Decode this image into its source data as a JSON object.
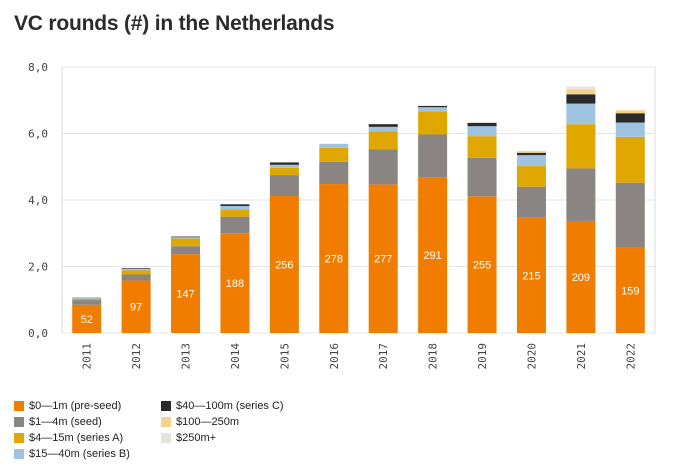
{
  "chart_data": {
    "type": "bar",
    "stacked": true,
    "title": "VC rounds (#) in the Netherlands",
    "xlabel": "",
    "ylabel": "",
    "ylim": [
      0,
      8
    ],
    "yticks": [
      "0,0",
      "2,0",
      "4,0",
      "6,0",
      "8,0"
    ],
    "categories": [
      "2011",
      "2012",
      "2013",
      "2014",
      "2015",
      "2016",
      "2017",
      "2018",
      "2019",
      "2020",
      "2021",
      "2022"
    ],
    "grid": true,
    "legend_position": "bottom-left",
    "series": [
      {
        "name": "$0—1m (pre-seed)",
        "color": "#f07d00",
        "values": [
          0.85,
          1.58,
          2.37,
          3.0,
          4.12,
          4.48,
          4.47,
          4.69,
          4.11,
          3.47,
          3.37,
          2.56
        ],
        "labels": [
          "52",
          "97",
          "147",
          "188",
          "256",
          "278",
          "277",
          "291",
          "255",
          "215",
          "209",
          "159"
        ]
      },
      {
        "name": "$1—4m (seed)",
        "color": "#8a8583",
        "values": [
          0.14,
          0.18,
          0.24,
          0.5,
          0.63,
          0.67,
          1.05,
          1.28,
          1.16,
          0.93,
          1.58,
          1.96
        ]
      },
      {
        "name": "$4—15m (series A)",
        "color": "#dfa700",
        "values": [
          0.04,
          0.12,
          0.23,
          0.22,
          0.22,
          0.42,
          0.55,
          0.69,
          0.65,
          0.62,
          1.33,
          1.38
        ]
      },
      {
        "name": "$15—40m (series B)",
        "color": "#9fc3e0",
        "values": [
          0.02,
          0.05,
          0.04,
          0.1,
          0.09,
          0.12,
          0.13,
          0.13,
          0.3,
          0.33,
          0.62,
          0.43
        ]
      },
      {
        "name": "$40—100m (series C)",
        "color": "#2a2a2a",
        "values": [
          0.01,
          0.02,
          0.02,
          0.05,
          0.07,
          0.0,
          0.08,
          0.04,
          0.1,
          0.07,
          0.28,
          0.28
        ]
      },
      {
        "name": "$100—250m",
        "color": "#f6d28a",
        "values": [
          0.0,
          0.0,
          0.0,
          0.0,
          0.0,
          0.0,
          0.0,
          0.0,
          0.0,
          0.05,
          0.13,
          0.09
        ]
      },
      {
        "name": "$250m+",
        "color": "#e8e2dd",
        "values": [
          0.0,
          0.0,
          0.0,
          0.0,
          0.0,
          0.0,
          0.0,
          0.0,
          0.0,
          0.0,
          0.1,
          0.0
        ]
      }
    ]
  },
  "legend": {
    "items": [
      {
        "label": "$0—1m (pre-seed)",
        "color": "#f07d00"
      },
      {
        "label": "$1—4m (seed)",
        "color": "#8a8583"
      },
      {
        "label": "$4—15m (series A)",
        "color": "#dfa700"
      },
      {
        "label": "$15—40m (series B)",
        "color": "#9fc3e0"
      },
      {
        "label": "$40—100m (series C)",
        "color": "#2a2a2a"
      },
      {
        "label": "$100—250m",
        "color": "#f6d28a"
      },
      {
        "label": "$250m+",
        "color": "#e8e2dd"
      }
    ]
  }
}
